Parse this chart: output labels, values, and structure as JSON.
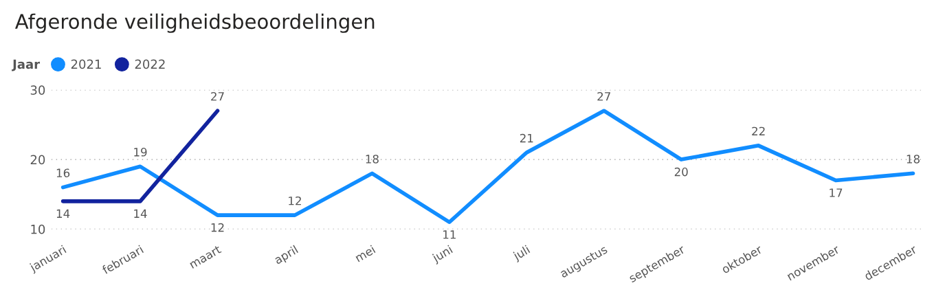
{
  "chart_data": {
    "type": "line",
    "title": "Afgeronde veiligheidsbeoordelingen",
    "legend_title": "Jaar",
    "categories": [
      "januari",
      "februari",
      "maart",
      "april",
      "mei",
      "juni",
      "juli",
      "augustus",
      "september",
      "oktober",
      "november",
      "december"
    ],
    "series": [
      {
        "name": "2021",
        "color": "#118dff",
        "values": [
          16,
          19,
          12,
          12,
          18,
          11,
          21,
          27,
          20,
          22,
          17,
          18
        ]
      },
      {
        "name": "2022",
        "color": "#12239e",
        "values": [
          14,
          14,
          27,
          null,
          null,
          null,
          null,
          null,
          null,
          null,
          null,
          null
        ]
      }
    ],
    "ylim": [
      10,
      30
    ],
    "yticks": [
      10,
      20,
      30
    ],
    "grid": "y",
    "legend": "top left",
    "marker": "none",
    "line_style": "solid",
    "data_labels": true
  }
}
